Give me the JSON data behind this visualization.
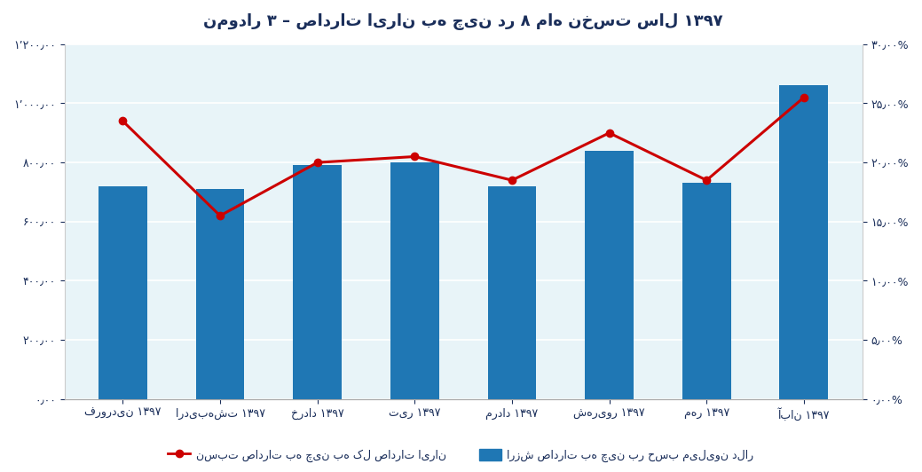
{
  "title": "نمودار ۳ – صادرات ایران به چین در ۸ ماه نخست سال ۱۳۹۷",
  "categories": [
    "فروردین ۱۳۹۷",
    "اردیبهشت ۱۳۹۷",
    "خرداد ۱۳۹۷",
    "تیر ۱۳۹۷",
    "مرداد ۱۳۹۷",
    "شهریور ۱۳۹۷",
    "مهر ۱۳۹۷",
    "آبان ۱۳۹۷"
  ],
  "bar_values": [
    720,
    710,
    790,
    800,
    720,
    840,
    730,
    1060
  ],
  "line_values": [
    0.235,
    0.155,
    0.2,
    0.205,
    0.185,
    0.225,
    0.185,
    0.255
  ],
  "bar_color": "#1F77B4",
  "line_color": "#CC0000",
  "background_color": "#E8F4F8",
  "ylim_left": [
    0,
    1200
  ],
  "ylim_right": [
    0,
    0.3
  ],
  "yticks_left": [
    0,
    200,
    400,
    600,
    800,
    1000,
    1200
  ],
  "yticks_right": [
    0,
    0.05,
    0.1,
    0.15,
    0.2,
    0.25,
    0.3
  ],
  "ytick_left_labels": [
    "۰٫۰۰",
    "۲۰۰٫۰۰",
    "۴۰۰٫۰۰",
    "۶۰۰٫۰۰",
    "۸۰۰٫۰۰",
    "۱٬۰۰۰٫۰۰",
    "۱٬۲۰۰٫۰۰"
  ],
  "ytick_right_labels": [
    "۰٫۰۰%",
    "۵٫۰۰%",
    "۱۰٫۰۰%",
    "۱۵٫۰۰%",
    "۲۰٫۰۰%",
    "۲۵٫۰۰%",
    "۳۰٫۰۰%"
  ],
  "legend_bar_label": "ارزش صادرات به چین بر حسب میلیون دلار",
  "legend_line_label": "نسبت صادرات به چین به کل صادرات ایران",
  "title_color": "#1a2e5a",
  "tick_color": "#1a2e5a"
}
